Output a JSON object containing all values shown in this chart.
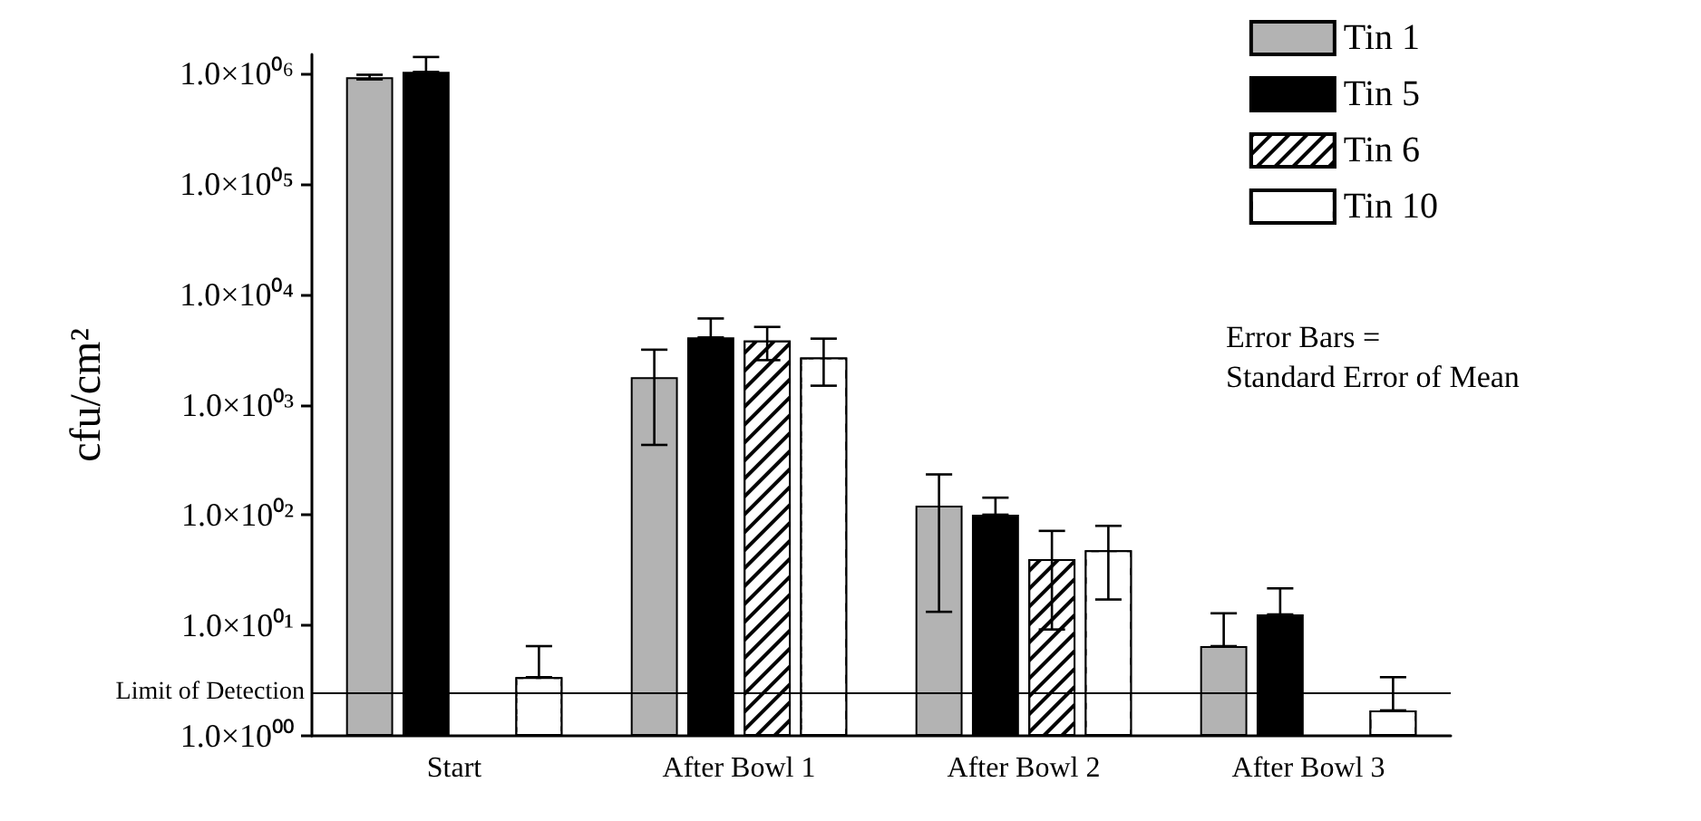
{
  "chart_data": {
    "type": "bar",
    "ylabel": "cfu/cm²",
    "categories": [
      "Start",
      "After Bowl 1",
      "After Bowl 2",
      "After Bowl 3"
    ],
    "series": [
      {
        "name": "Tin 1",
        "color": "#b3b3b3",
        "values": [
          930000,
          1780,
          122,
          6.5
        ],
        "errors": [
          [
            890000,
            980000
          ],
          [
            433,
            3160
          ],
          [
            13.3,
            234
          ],
          [
            6.5,
            12.9
          ]
        ]
      },
      {
        "name": "Tin 5",
        "color": "#000000",
        "values": [
          1040000,
          4080,
          101,
          12.6
        ],
        "errors": [
          [
            1040000,
            1420000
          ],
          [
            4080,
            6060
          ],
          [
            101,
            144
          ],
          [
            12.6,
            21.7
          ]
        ]
      },
      {
        "name": "Tin 6",
        "color": "#ffffff",
        "values": [
          null,
          3820,
          40,
          null
        ],
        "errors": [
          null,
          [
            2540,
            5080
          ],
          [
            9.2,
            72
          ],
          null
        ]
      },
      {
        "name": "Tin 10",
        "color": "#ffffff",
        "values": [
          3.4,
          2680,
          48,
          1.7
        ],
        "errors": [
          [
            3.4,
            6.5
          ],
          [
            1490,
            3980
          ],
          [
            17.2,
            80
          ],
          [
            1.7,
            3.4
          ]
        ]
      }
    ],
    "log": true,
    "ylim": [
      1,
      1500000
    ],
    "yticks": [
      {
        "value": 1,
        "label": "1.0×10⁰⁰"
      },
      {
        "value": 10,
        "label": "1.0×10⁰¹"
      },
      {
        "value": 100,
        "label": "1.0×10⁰²"
      },
      {
        "value": 1000,
        "label": "1.0×10⁰³"
      },
      {
        "value": 10000,
        "label": "1.0×10⁰⁴"
      },
      {
        "value": 100000,
        "label": "1.0×10⁰⁵"
      },
      {
        "value": 1000000,
        "label": "1.0×10⁰⁶"
      }
    ],
    "ref_lines": [
      {
        "axis": "y",
        "value": 2.5,
        "label": "Limit of Detection",
        "color": "#000000"
      }
    ],
    "annotations": [
      "Error Bars =\nStandard Error of Mean"
    ],
    "grid": false,
    "legend": "top right"
  }
}
